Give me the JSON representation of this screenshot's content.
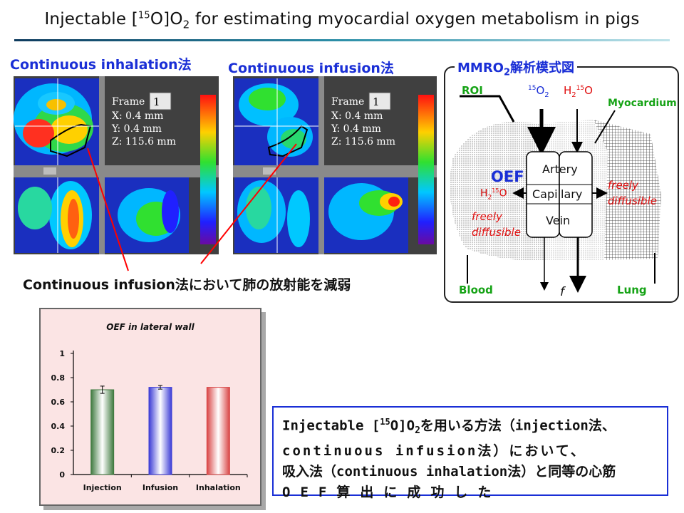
{
  "title": {
    "pre": "Injectable [",
    "sup": "15",
    "mid": "O]O",
    "sub": "2",
    "post": " for estimating myocardial oxygen metabolism in pigs"
  },
  "panels": {
    "inhalation_heading": "Continuous inhalation法",
    "infusion_heading": "Continuous infusion法",
    "frame_label": "Frame",
    "frame_value": "1",
    "x_readout": "X:  0.4 mm",
    "y_readout": "Y:  0.4 mm",
    "z_readout": "Z: 115.6 mm"
  },
  "note": "Continuous infusion法において肺の放射能を減弱",
  "model": {
    "heading_pre": "MMRO",
    "heading_sub": "2",
    "heading_post": "解析模式図",
    "roi": "ROI",
    "o2_sup": "15",
    "o2_main": "O",
    "o2_sub": "2",
    "h2o_in_pre": "H",
    "h2o_in_sub": "2",
    "h2o_in_sup": "15",
    "h2o_in_post": "O",
    "myocardium": "Myocardium",
    "oef": "OEF",
    "artery": "Artery",
    "capillary": "Capillary",
    "vein": "Vein",
    "h2o_left_pre": "H",
    "h2o_left_sub": "2",
    "h2o_left_sup": "15",
    "h2o_left_post": "O",
    "freely_left_1": "freely",
    "freely_left_2": "diffusible",
    "freely_right_1": "freely",
    "freely_right_2": "diffusible",
    "blood": "Blood",
    "flow": "f",
    "lung": "Lung"
  },
  "chart_data": {
    "type": "bar",
    "title": "OEF in lateral wall",
    "categories": [
      "Injection",
      "Infusion",
      "Inhalation"
    ],
    "values": [
      0.7,
      0.72,
      0.72
    ],
    "errors": [
      0.03,
      0.015,
      0
    ],
    "ylim": [
      0,
      1
    ],
    "yticks": [
      "0",
      "0.2",
      "0.4",
      "0.6",
      "0.8",
      "1"
    ],
    "colors": [
      "#3f7a3f",
      "#3b3bd6",
      "#d94545"
    ]
  },
  "conclusion": {
    "line1_pre": "Injectable [",
    "line1_sup": "15",
    "line1_mid": "O]O",
    "line1_sub": "2",
    "line1_post": "を用いる方法（injection法、",
    "line2": "continuous infusion法）において、",
    "line3": "吸入法（continuous inhalation法）と同等の心筋",
    "line4": "OEF算出に成功した"
  }
}
